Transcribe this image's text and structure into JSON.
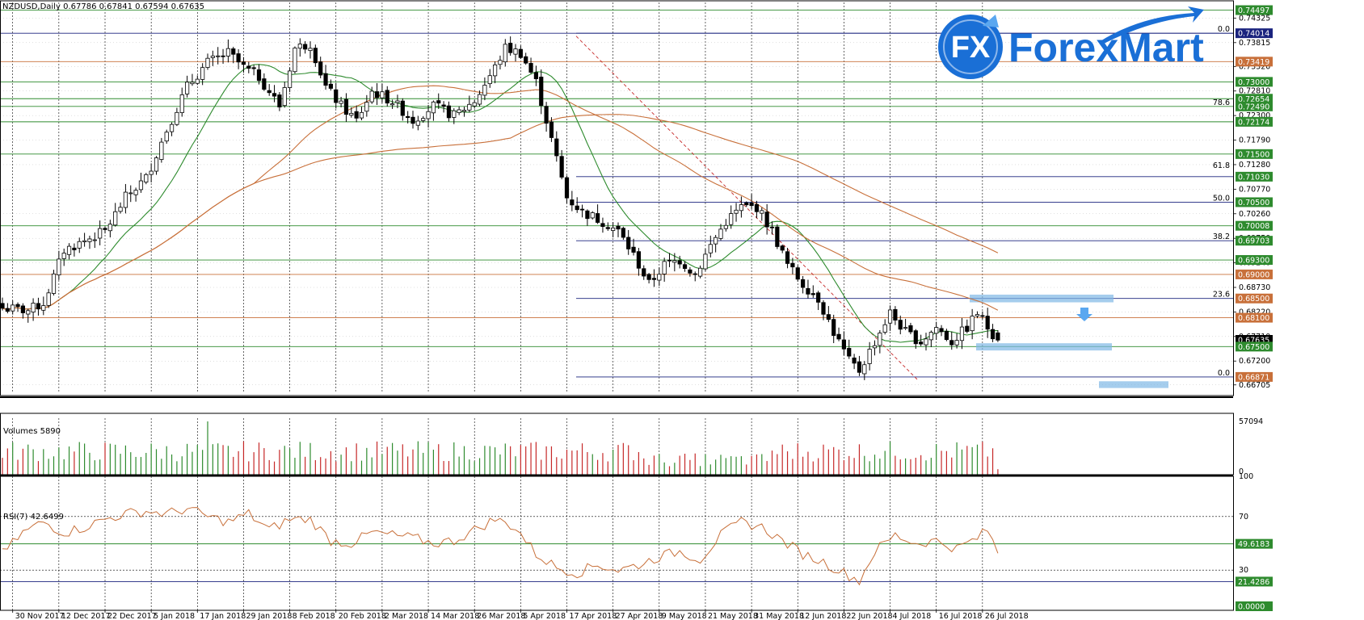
{
  "header": {
    "symbol": "NZDUSD,Daily",
    "ohlc": "0.67786 0.67841 0.67594 0.67635"
  },
  "logo": {
    "mark": "FX",
    "brand": "ForexMart",
    "colors": {
      "blue": "#1a6fd6",
      "light": "#5aa7f0"
    }
  },
  "panels": {
    "volumes_label": "Volumes 5890",
    "rsi_label": "RSI(7) 42.6499"
  },
  "chart_data": [
    {
      "type": "candlestick",
      "panel": "price",
      "ylim": [
        0.6655,
        0.7465
      ],
      "price_axis_ticks": [
        "0.74325",
        "0.73815",
        "0.73320",
        "0.72810",
        "0.72300",
        "0.71790",
        "0.71280",
        "0.70770",
        "0.70260",
        "0.69750",
        "0.69240",
        "0.68730",
        "0.68220",
        "0.67710",
        "0.67200",
        "0.66705"
      ],
      "levels": [
        {
          "price": 0.7449,
          "label": "0.74497",
          "color": "#2e8b2e",
          "box": "#2e8b2e"
        },
        {
          "price": 0.7401,
          "label": "0.74014",
          "color": "#1a237e",
          "box": "#1a237e"
        },
        {
          "price": 0.7342,
          "label": "0.73419",
          "color": "#c8703a",
          "box": "#c8703a"
        },
        {
          "price": 0.73,
          "label": "0.73000",
          "color": "#2e8b2e",
          "box": "#2e8b2e"
        },
        {
          "price": 0.7265,
          "label": "0.72654",
          "color": "#2e8b2e",
          "box": "#2e8b2e"
        },
        {
          "price": 0.7249,
          "label": "0.72490",
          "color": "#2e8b2e",
          "box": "#2e8b2e"
        },
        {
          "price": 0.7217,
          "label": "0.72174",
          "color": "#2e8b2e",
          "box": "#2e8b2e"
        },
        {
          "price": 0.715,
          "label": "0.71500",
          "color": "#2e8b2e",
          "box": "#2e8b2e"
        },
        {
          "price": 0.7103,
          "label": "0.71030",
          "color": "#1a237e",
          "box": "#2e8b2e"
        },
        {
          "price": 0.705,
          "label": "0.70500",
          "color": "#1a237e",
          "box": "#2e8b2e"
        },
        {
          "price": 0.7001,
          "label": "0.70008",
          "color": "#2e8b2e",
          "box": "#2e8b2e"
        },
        {
          "price": 0.697,
          "label": "0.69703",
          "color": "#1a237e",
          "box": "#2e8b2e"
        },
        {
          "price": 0.693,
          "label": "0.69300",
          "color": "#2e8b2e",
          "box": "#2e8b2e"
        },
        {
          "price": 0.69,
          "label": "0.69000",
          "color": "#c8703a",
          "box": "#c8703a"
        },
        {
          "price": 0.685,
          "label": "0.68500",
          "color": "#1a237e",
          "box": "#c8703a"
        },
        {
          "price": 0.681,
          "label": "0.68100",
          "color": "#c8703a",
          "box": "#c8703a"
        },
        {
          "price": 0.6764,
          "label": "0.67635",
          "color": null,
          "box": "#000000"
        },
        {
          "price": 0.675,
          "label": "0.67500",
          "color": "#2e8b2e",
          "box": "#2e8b2e"
        },
        {
          "price": 0.6687,
          "label": "0.66871",
          "color": "#1a237e",
          "box": "#c8703a"
        }
      ],
      "fibonacci": [
        {
          "label": "0.0",
          "price": 0.7401
        },
        {
          "label": "78.6",
          "price": 0.7249
        },
        {
          "label": "61.8",
          "price": 0.7118
        },
        {
          "label": "50.0",
          "price": 0.705
        },
        {
          "label": "38.2",
          "price": 0.697
        },
        {
          "label": "23.6",
          "price": 0.685
        },
        {
          "label": "0.0",
          "price": 0.6687
        }
      ],
      "x_labels": [
        "30 Nov 2017",
        "12 Dec 2017",
        "22 Dec 2017",
        "5 Jan 2018",
        "17 Jan 2018",
        "29 Jan 2018",
        "8 Feb 2018",
        "20 Feb 2018",
        "2 Mar 2018",
        "14 Mar 2018",
        "26 Mar 2018",
        "5 Apr 2018",
        "17 Apr 2018",
        "27 Apr 2018",
        "9 May 2018",
        "21 May 2018",
        "31 May 2018",
        "12 Jun 2018",
        "22 Jun 2018",
        "4 Jul 2018",
        "16 Jul 2018",
        "26 Jul 2018"
      ],
      "close_path": [
        [
          0,
          0.683
        ],
        [
          5,
          0.6825
        ],
        [
          8,
          0.684
        ],
        [
          12,
          0.695
        ],
        [
          20,
          0.699
        ],
        [
          24,
          0.706
        ],
        [
          28,
          0.71
        ],
        [
          32,
          0.72
        ],
        [
          36,
          0.729
        ],
        [
          40,
          0.734
        ],
        [
          44,
          0.736
        ],
        [
          47,
          0.733
        ],
        [
          50,
          0.731
        ],
        [
          54,
          0.725
        ],
        [
          57,
          0.737
        ],
        [
          60,
          0.738
        ],
        [
          63,
          0.729
        ],
        [
          66,
          0.725
        ],
        [
          69,
          0.722
        ],
        [
          72,
          0.728
        ],
        [
          76,
          0.726
        ],
        [
          80,
          0.722
        ],
        [
          84,
          0.725
        ],
        [
          88,
          0.723
        ],
        [
          92,
          0.726
        ],
        [
          96,
          0.733
        ],
        [
          98,
          0.737
        ],
        [
          101,
          0.736
        ],
        [
          104,
          0.73
        ],
        [
          107,
          0.718
        ],
        [
          110,
          0.706
        ],
        [
          113,
          0.703
        ],
        [
          117,
          0.701
        ],
        [
          120,
          0.699
        ],
        [
          123,
          0.694
        ],
        [
          126,
          0.688
        ],
        [
          129,
          0.692
        ],
        [
          132,
          0.693
        ],
        [
          135,
          0.69
        ],
        [
          138,
          0.696
        ],
        [
          141,
          0.701
        ],
        [
          144,
          0.704
        ],
        [
          147,
          0.704
        ],
        [
          150,
          0.699
        ],
        [
          153,
          0.692
        ],
        [
          156,
          0.688
        ],
        [
          159,
          0.685
        ],
        [
          162,
          0.678
        ],
        [
          165,
          0.672
        ],
        [
          167,
          0.67
        ],
        [
          170,
          0.676
        ],
        [
          173,
          0.682
        ],
        [
          176,
          0.678
        ],
        [
          179,
          0.676
        ],
        [
          182,
          0.679
        ],
        [
          185,
          0.676
        ],
        [
          188,
          0.679
        ],
        [
          190,
          0.682
        ],
        [
          192,
          0.679
        ],
        [
          194,
          0.6764
        ]
      ]
    },
    {
      "type": "bar",
      "panel": "volumes",
      "ylim": [
        0,
        57094
      ],
      "axis_ticks": [
        "57094",
        "0"
      ],
      "colors": {
        "up": "#2e8b2e",
        "down": "#c62828"
      }
    },
    {
      "type": "line",
      "panel": "rsi",
      "ylim": [
        0,
        100
      ],
      "axis_ticks": [
        "100",
        "70",
        "30",
        "0.0000"
      ],
      "levels": [
        {
          "value": 70,
          "style": "dashed"
        },
        {
          "value": 49.6183,
          "label": "49.6183",
          "box": "#2e8b2e",
          "color": "#2e8b2e"
        },
        {
          "value": 30,
          "style": "dashed"
        },
        {
          "value": 21.4286,
          "label": "21.4286",
          "box": "#2e8b2e",
          "color": "#1a237e"
        },
        {
          "value": 0,
          "label": "0.0000",
          "box": "#2e8b2e"
        }
      ],
      "rsi_path": [
        [
          0,
          42
        ],
        [
          4,
          58
        ],
        [
          8,
          66
        ],
        [
          12,
          58
        ],
        [
          16,
          62
        ],
        [
          20,
          68
        ],
        [
          24,
          72
        ],
        [
          28,
          74
        ],
        [
          32,
          72
        ],
        [
          36,
          76
        ],
        [
          40,
          70
        ],
        [
          44,
          66
        ],
        [
          48,
          72
        ],
        [
          52,
          60
        ],
        [
          56,
          68
        ],
        [
          60,
          68
        ],
        [
          64,
          52
        ],
        [
          68,
          50
        ],
        [
          72,
          58
        ],
        [
          76,
          56
        ],
        [
          80,
          54
        ],
        [
          84,
          50
        ],
        [
          88,
          52
        ],
        [
          92,
          60
        ],
        [
          96,
          68
        ],
        [
          100,
          62
        ],
        [
          104,
          42
        ],
        [
          108,
          32
        ],
        [
          112,
          28
        ],
        [
          116,
          34
        ],
        [
          120,
          30
        ],
        [
          124,
          34
        ],
        [
          128,
          40
        ],
        [
          132,
          44
        ],
        [
          136,
          38
        ],
        [
          140,
          56
        ],
        [
          144,
          66
        ],
        [
          148,
          62
        ],
        [
          152,
          52
        ],
        [
          156,
          42
        ],
        [
          160,
          36
        ],
        [
          164,
          28
        ],
        [
          167,
          22
        ],
        [
          170,
          44
        ],
        [
          174,
          56
        ],
        [
          178,
          50
        ],
        [
          182,
          52
        ],
        [
          186,
          46
        ],
        [
          190,
          54
        ],
        [
          192,
          60
        ],
        [
          194,
          42.6
        ]
      ]
    }
  ]
}
